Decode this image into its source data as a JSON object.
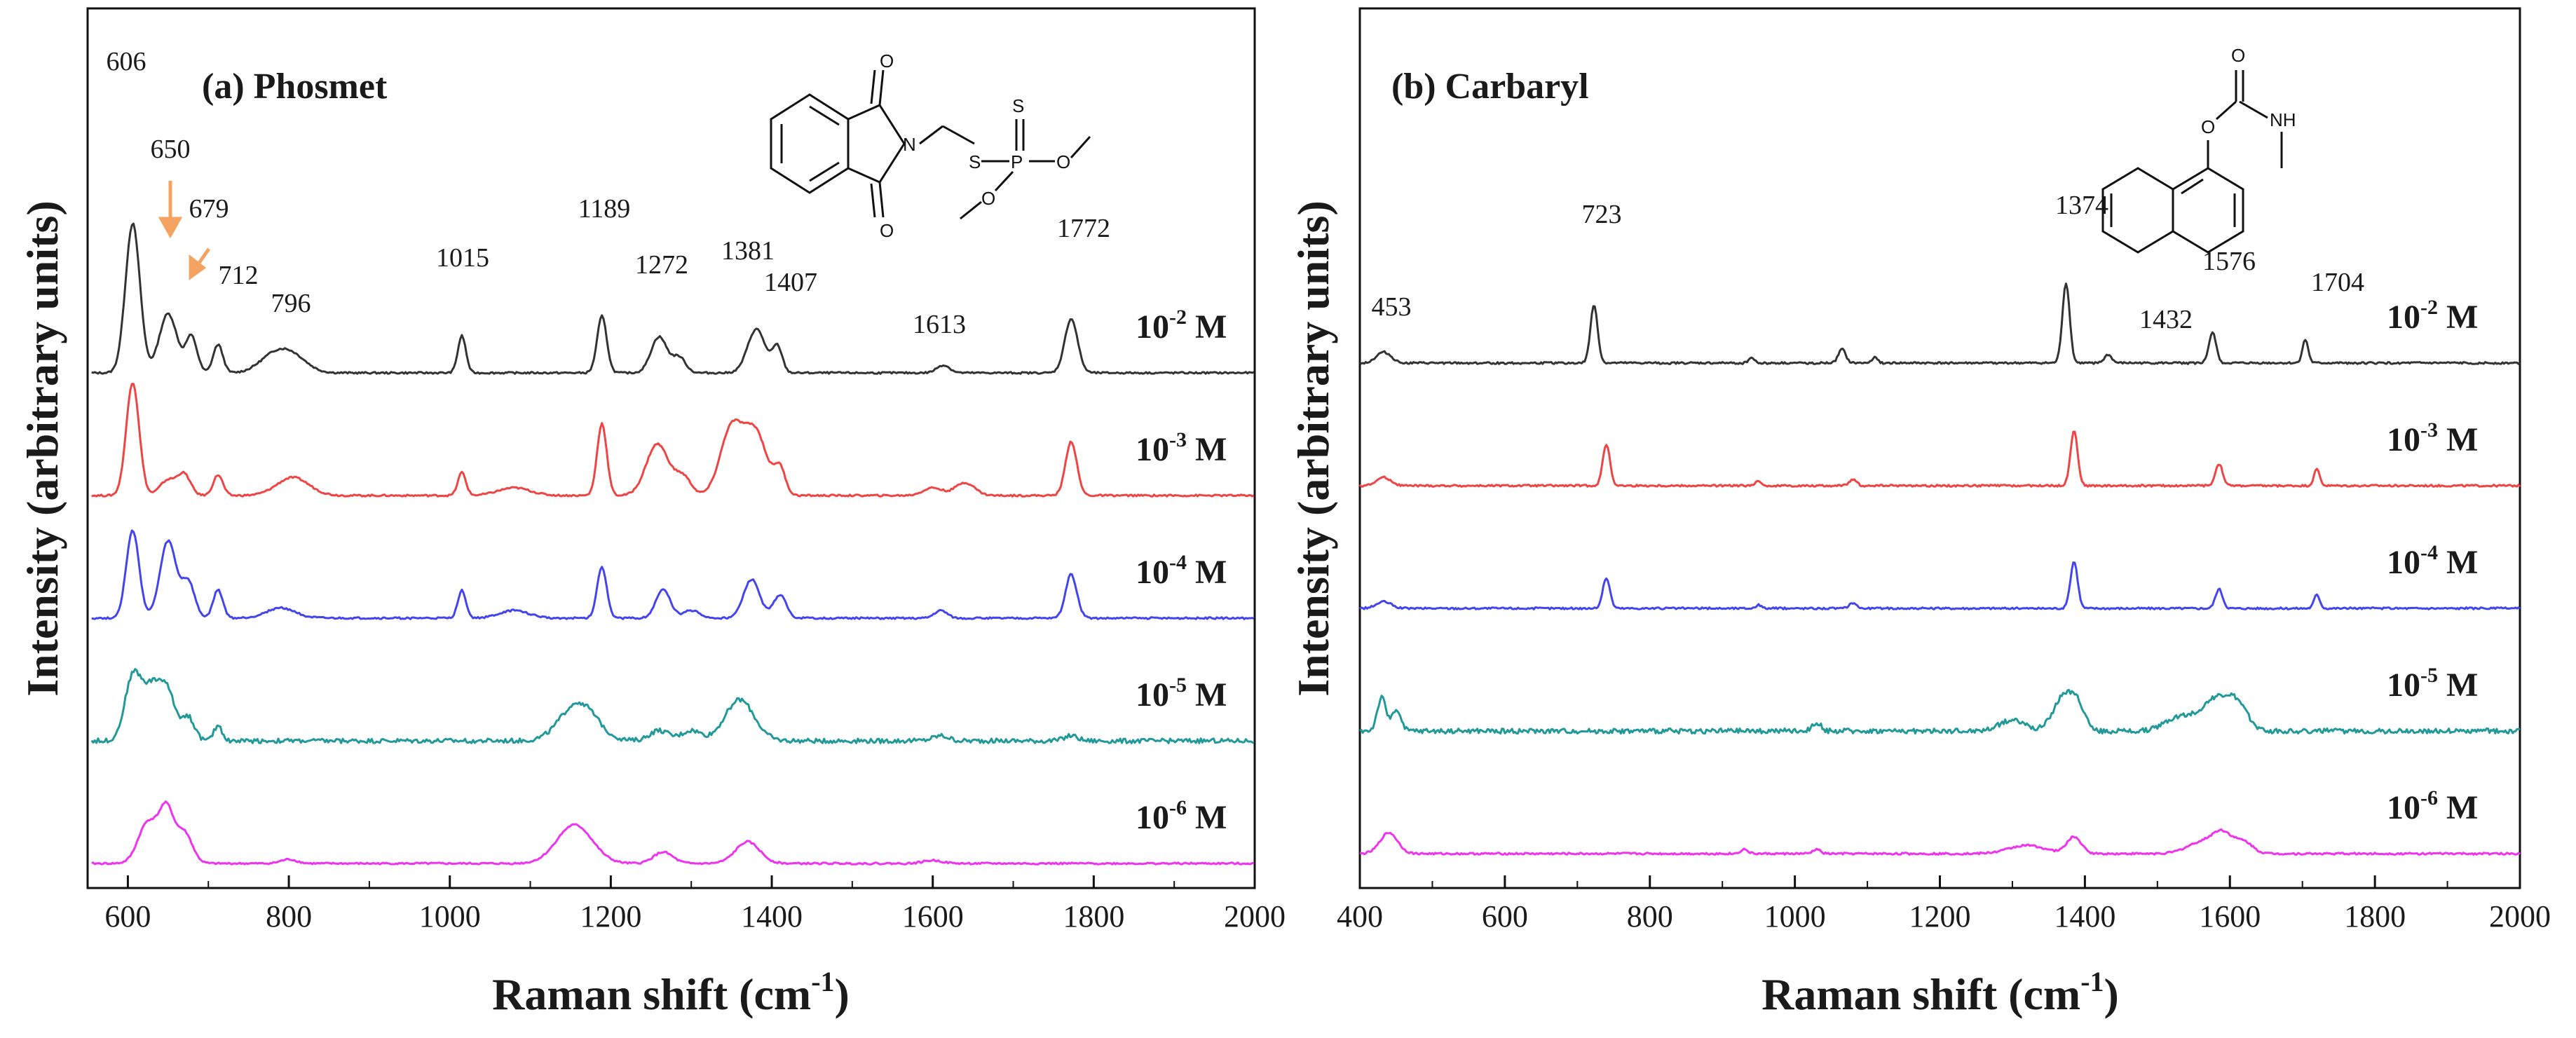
{
  "chart_data": [
    {
      "type": "line",
      "panel": "(a) Phosmet",
      "title": "(a) Phosmet",
      "xlabel": "Raman shift (cm",
      "xlabel_sup": "-1",
      "xlabel_end": ")",
      "ylabel": "Intensity (arbitrary  units)",
      "xlim": [
        550,
        2000
      ],
      "xticks": [
        600,
        800,
        1000,
        1200,
        1400,
        1600,
        1800,
        2000
      ],
      "yticks_shown": false,
      "structure": "Phosmet",
      "structure_atoms": {
        "o1": "O",
        "o2": "O",
        "n": "N",
        "s1": "S",
        "s2": "S",
        "p": "P",
        "o3": "O",
        "o4": "O"
      },
      "peak_labels": [
        606,
        650,
        679,
        712,
        796,
        1015,
        1189,
        1272,
        1381,
        1407,
        1613,
        1772
      ],
      "arrows": [
        {
          "peak": 650,
          "color": "#f4a460"
        },
        {
          "peak": 679,
          "color": "#f4a460"
        }
      ],
      "series": [
        {
          "name": "10-2 M",
          "base": "10",
          "exp": "-2",
          "unit": " M",
          "color": "#333333",
          "offset": 4.0,
          "peaks": [
            [
              606,
              2.9,
              9
            ],
            [
              650,
              1.15,
              11
            ],
            [
              679,
              0.7,
              7
            ],
            [
              712,
              0.55,
              6
            ],
            [
              780,
              0.3,
              18
            ],
            [
              805,
              0.3,
              18
            ],
            [
              1015,
              0.72,
              5
            ],
            [
              1189,
              1.1,
              6
            ],
            [
              1260,
              0.7,
              10
            ],
            [
              1285,
              0.3,
              8
            ],
            [
              1381,
              0.85,
              11
            ],
            [
              1407,
              0.5,
              6
            ],
            [
              1613,
              0.15,
              8
            ],
            [
              1772,
              1.05,
              8
            ]
          ]
        },
        {
          "name": "10-3 M",
          "base": "10",
          "exp": "-3",
          "unit": " M",
          "color": "#ee4444",
          "offset": 3.0,
          "peaks": [
            [
              606,
              2.2,
              8
            ],
            [
              650,
              0.3,
              10
            ],
            [
              670,
              0.4,
              8
            ],
            [
              712,
              0.4,
              6
            ],
            [
              805,
              0.35,
              20
            ],
            [
              1015,
              0.45,
              5
            ],
            [
              1080,
              0.15,
              20
            ],
            [
              1189,
              1.4,
              6
            ],
            [
              1258,
              1.0,
              14
            ],
            [
              1290,
              0.35,
              10
            ],
            [
              1350,
              1.3,
              14
            ],
            [
              1380,
              1.2,
              14
            ],
            [
              1410,
              0.5,
              7
            ],
            [
              1600,
              0.15,
              12
            ],
            [
              1640,
              0.25,
              12
            ],
            [
              1772,
              1.05,
              7
            ]
          ]
        },
        {
          "name": "10-4 M",
          "base": "10",
          "exp": "-4",
          "unit": " M",
          "color": "#4444ee",
          "offset": 2.0,
          "peaks": [
            [
              606,
              1.7,
              8
            ],
            [
              650,
              1.5,
              10
            ],
            [
              675,
              0.7,
              8
            ],
            [
              712,
              0.55,
              6
            ],
            [
              790,
              0.2,
              18
            ],
            [
              1015,
              0.55,
              5
            ],
            [
              1080,
              0.15,
              18
            ],
            [
              1189,
              1.0,
              6
            ],
            [
              1265,
              0.55,
              9
            ],
            [
              1300,
              0.15,
              10
            ],
            [
              1375,
              0.75,
              10
            ],
            [
              1410,
              0.45,
              8
            ],
            [
              1610,
              0.15,
              8
            ],
            [
              1772,
              0.85,
              7
            ]
          ]
        },
        {
          "name": "10-5 M",
          "base": "10",
          "exp": "-5",
          "unit": " M",
          "color": "#229999",
          "offset": 1.0,
          "peaks": [
            [
              606,
              1.2,
              10
            ],
            [
              630,
              1.0,
              12
            ],
            [
              650,
              0.8,
              10
            ],
            [
              675,
              0.45,
              8
            ],
            [
              712,
              0.3,
              5
            ],
            [
              1160,
              0.75,
              22
            ],
            [
              1260,
              0.2,
              12
            ],
            [
              1300,
              0.2,
              12
            ],
            [
              1360,
              0.8,
              18
            ],
            [
              1610,
              0.1,
              10
            ],
            [
              1772,
              0.1,
              8
            ]
          ]
        },
        {
          "name": "10-6 M",
          "base": "10",
          "exp": "-6",
          "unit": " M",
          "color": "#ee33ee",
          "offset": 0.0,
          "peaks": [
            [
              625,
              0.8,
              12
            ],
            [
              648,
              1.0,
              9
            ],
            [
              670,
              0.6,
              10
            ],
            [
              800,
              0.08,
              10
            ],
            [
              1155,
              0.75,
              22
            ],
            [
              1265,
              0.22,
              12
            ],
            [
              1370,
              0.42,
              15
            ],
            [
              1600,
              0.06,
              12
            ]
          ]
        }
      ]
    },
    {
      "type": "line",
      "panel": "(b) Carbaryl",
      "title": "(b) Carbaryl",
      "xlabel": "Raman shift (cm",
      "xlabel_sup": "-1",
      "xlabel_end": ")",
      "ylabel": "Intensity (arbitrary units)",
      "xlim": [
        400,
        2000
      ],
      "xticks": [
        400,
        600,
        800,
        1000,
        1200,
        1400,
        1600,
        1800,
        2000
      ],
      "yticks_shown": false,
      "structure": "Carbaryl",
      "structure_atoms": {
        "o1": "O",
        "o2": "O",
        "nh": "NH"
      },
      "peak_labels": [
        453,
        723,
        1374,
        1432,
        1576,
        1704
      ],
      "series": [
        {
          "name": "10-2 M",
          "base": "10",
          "exp": "-2",
          "unit": " M",
          "color": "#333333",
          "offset": 4.0,
          "peaks": [
            [
              433,
              0.2,
              10
            ],
            [
              723,
              1.05,
              5
            ],
            [
              940,
              0.1,
              4
            ],
            [
              1065,
              0.25,
              5
            ],
            [
              1110,
              0.1,
              4
            ],
            [
              1374,
              1.45,
              5
            ],
            [
              1432,
              0.15,
              5
            ],
            [
              1576,
              0.55,
              5
            ],
            [
              1704,
              0.42,
              4
            ]
          ]
        },
        {
          "name": "10-3 M",
          "base": "10",
          "exp": "-3",
          "unit": " M",
          "color": "#ee4444",
          "offset": 3.0,
          "peaks": [
            [
              433,
              0.15,
              10
            ],
            [
              740,
              0.75,
              5
            ],
            [
              950,
              0.08,
              4
            ],
            [
              1080,
              0.12,
              5
            ],
            [
              1385,
              1.0,
              5
            ],
            [
              1585,
              0.4,
              5
            ],
            [
              1720,
              0.3,
              4
            ]
          ]
        },
        {
          "name": "10-4 M",
          "base": "10",
          "exp": "-4",
          "unit": " M",
          "color": "#4444ee",
          "offset": 2.0,
          "peaks": [
            [
              433,
              0.12,
              10
            ],
            [
              740,
              0.55,
              5
            ],
            [
              950,
              0.06,
              4
            ],
            [
              1080,
              0.1,
              5
            ],
            [
              1385,
              0.85,
              5
            ],
            [
              1585,
              0.35,
              5
            ],
            [
              1720,
              0.25,
              4
            ]
          ]
        },
        {
          "name": "10-5 M",
          "base": "10",
          "exp": "-5",
          "unit": " M",
          "color": "#229999",
          "offset": 1.0,
          "peaks": [
            [
              430,
              0.6,
              6
            ],
            [
              450,
              0.4,
              6
            ],
            [
              1030,
              0.15,
              6
            ],
            [
              1300,
              0.2,
              18
            ],
            [
              1370,
              0.6,
              14
            ],
            [
              1390,
              0.4,
              10
            ],
            [
              1530,
              0.25,
              20
            ],
            [
              1580,
              0.55,
              20
            ],
            [
              1610,
              0.4,
              15
            ]
          ]
        },
        {
          "name": "10-6 M",
          "base": "10",
          "exp": "-6",
          "unit": " M",
          "color": "#ee33ee",
          "offset": 0.0,
          "peaks": [
            [
              440,
              0.38,
              12
            ],
            [
              930,
              0.08,
              5
            ],
            [
              1030,
              0.08,
              5
            ],
            [
              1320,
              0.15,
              25
            ],
            [
              1385,
              0.3,
              10
            ],
            [
              1560,
              0.2,
              20
            ],
            [
              1590,
              0.35,
              14
            ],
            [
              1620,
              0.2,
              12
            ]
          ]
        }
      ]
    }
  ]
}
